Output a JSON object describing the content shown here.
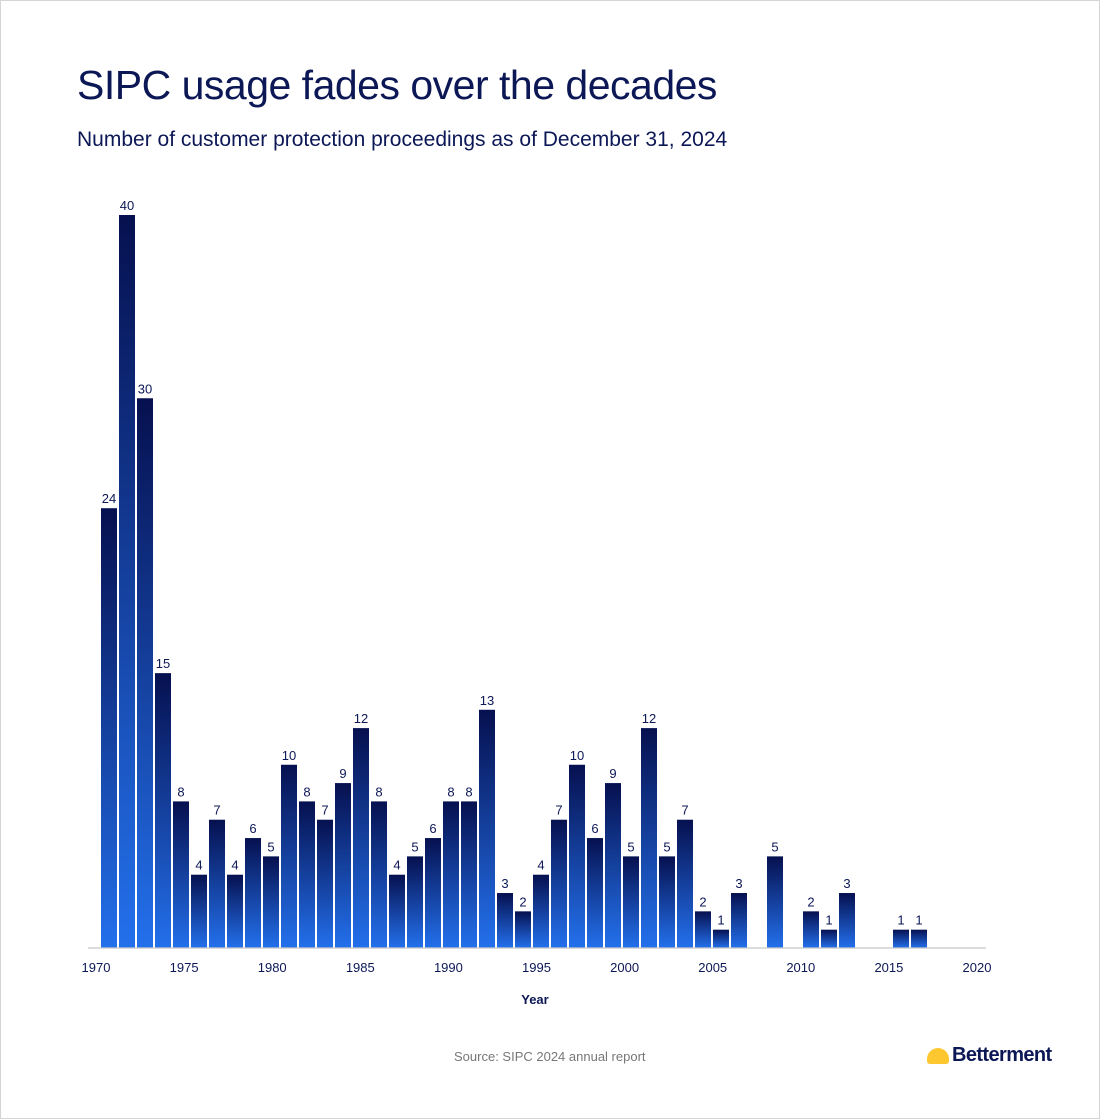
{
  "title": "SIPC usage fades over the decades",
  "subtitle": "Number of customer protection proceedings as of December 31, 2024",
  "source": "Source: SIPC 2024 annual report",
  "brand": "Betterment",
  "colors": {
    "title": "#0c1756",
    "bar_top": "#06104f",
    "bar_bottom": "#2370ec",
    "logo": "#fdc82f"
  },
  "chart_data": {
    "type": "bar",
    "title": "SIPC usage fades over the decades",
    "xlabel": "Year",
    "ylabel": "",
    "xlim": [
      1970,
      2020
    ],
    "ylim": [
      0,
      40
    ],
    "grid": false,
    "xticks": [
      1970,
      1975,
      1980,
      1985,
      1990,
      1995,
      2000,
      2005,
      2010,
      2015,
      2020
    ],
    "x": [
      1971,
      1972,
      1973,
      1974,
      1975,
      1976,
      1977,
      1978,
      1979,
      1980,
      1981,
      1982,
      1983,
      1984,
      1985,
      1986,
      1987,
      1988,
      1989,
      1990,
      1991,
      1992,
      1993,
      1994,
      1995,
      1996,
      1997,
      1998,
      1999,
      2000,
      2001,
      2002,
      2003,
      2004,
      2005,
      2006,
      2008,
      2010,
      2011,
      2012,
      2015,
      2016
    ],
    "values": [
      24,
      40,
      30,
      15,
      8,
      4,
      7,
      4,
      6,
      5,
      10,
      8,
      7,
      9,
      12,
      8,
      4,
      5,
      6,
      8,
      8,
      13,
      3,
      2,
      4,
      7,
      10,
      6,
      9,
      5,
      12,
      5,
      7,
      2,
      1,
      3,
      5,
      2,
      1,
      3,
      1,
      1
    ]
  }
}
